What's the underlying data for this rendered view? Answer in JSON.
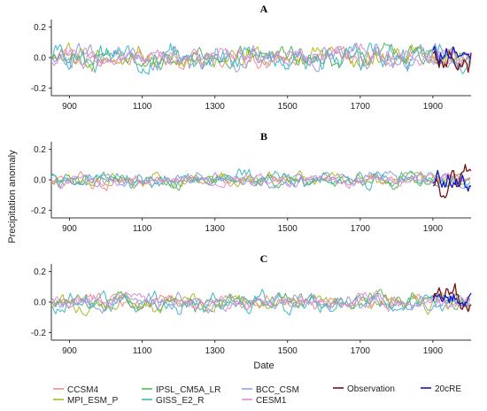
{
  "figure": {
    "ylabel": "Precipitation anomaly",
    "xlabel": "Date"
  },
  "legend": [
    {
      "name": "CCSM4",
      "color": "#f28e8e"
    },
    {
      "name": "MPI_ESM_P",
      "color": "#b5b52a"
    },
    {
      "name": "IPSL_CM5A_LR",
      "color": "#5ab55a"
    },
    {
      "name": "GISS_E2_R",
      "color": "#3fb8c4"
    },
    {
      "name": "BCC_CSM",
      "color": "#8da0e0"
    },
    {
      "name": "CESM1",
      "color": "#dd8ddd"
    },
    {
      "name": "Observation",
      "color": "#7a1010"
    },
    {
      "name": "20cRE",
      "color": "#1414c8"
    }
  ],
  "chart_data": [
    {
      "type": "line",
      "title": "A",
      "xlabel": "",
      "ylabel": "",
      "xlim": [
        850,
        2005
      ],
      "ylim": [
        -0.25,
        0.25
      ],
      "xticks": [
        900,
        1100,
        1300,
        1500,
        1700,
        1900
      ],
      "yticks": [
        -0.2,
        0.0,
        0.2
      ],
      "ytick_labels": [
        "-0.2",
        "0.0",
        "0.2"
      ],
      "grid": false,
      "legend": "bottom",
      "series": [
        {
          "name": "CCSM4",
          "x_start": 850,
          "x_end": 2005,
          "amplitude": 0.05,
          "seed": 11
        },
        {
          "name": "MPI_ESM_P",
          "x_start": 850,
          "x_end": 2005,
          "amplitude": 0.06,
          "seed": 12
        },
        {
          "name": "IPSL_CM5A_LR",
          "x_start": 850,
          "x_end": 2005,
          "amplitude": 0.05,
          "seed": 13
        },
        {
          "name": "GISS_E2_R",
          "x_start": 850,
          "x_end": 2005,
          "amplitude": 0.07,
          "seed": 14
        },
        {
          "name": "BCC_CSM",
          "x_start": 850,
          "x_end": 2005,
          "amplitude": 0.06,
          "seed": 15
        },
        {
          "name": "CESM1",
          "x_start": 850,
          "x_end": 2005,
          "amplitude": 0.05,
          "seed": 16
        },
        {
          "name": "Observation",
          "x_start": 1901,
          "x_end": 2005,
          "amplitude": 0.09,
          "seed": 17
        },
        {
          "name": "20cRE",
          "x_start": 1901,
          "x_end": 2005,
          "amplitude": 0.1,
          "seed": 18
        }
      ]
    },
    {
      "type": "line",
      "title": "B",
      "xlabel": "",
      "ylabel": "",
      "xlim": [
        850,
        2005
      ],
      "ylim": [
        -0.25,
        0.25
      ],
      "xticks": [
        900,
        1100,
        1300,
        1500,
        1700,
        1900
      ],
      "yticks": [
        -0.2,
        0.0,
        0.2
      ],
      "ytick_labels": [
        "-0.2",
        "0.0",
        "0.2"
      ],
      "grid": false,
      "legend": "bottom",
      "series": [
        {
          "name": "CCSM4",
          "x_start": 850,
          "x_end": 2005,
          "amplitude": 0.035,
          "seed": 21
        },
        {
          "name": "MPI_ESM_P",
          "x_start": 850,
          "x_end": 2005,
          "amplitude": 0.04,
          "seed": 22
        },
        {
          "name": "IPSL_CM5A_LR",
          "x_start": 850,
          "x_end": 2005,
          "amplitude": 0.035,
          "seed": 23
        },
        {
          "name": "GISS_E2_R",
          "x_start": 850,
          "x_end": 2005,
          "amplitude": 0.045,
          "seed": 24
        },
        {
          "name": "BCC_CSM",
          "x_start": 850,
          "x_end": 2005,
          "amplitude": 0.035,
          "seed": 25
        },
        {
          "name": "CESM1",
          "x_start": 850,
          "x_end": 2005,
          "amplitude": 0.03,
          "seed": 26
        },
        {
          "name": "Observation",
          "x_start": 1901,
          "x_end": 2005,
          "amplitude": 0.08,
          "seed": 27
        },
        {
          "name": "20cRE",
          "x_start": 1901,
          "x_end": 2005,
          "amplitude": 0.07,
          "seed": 28
        }
      ]
    },
    {
      "type": "line",
      "title": "C",
      "xlabel": "Date",
      "ylabel": "",
      "xlim": [
        850,
        2005
      ],
      "ylim": [
        -0.25,
        0.25
      ],
      "xticks": [
        900,
        1100,
        1300,
        1500,
        1700,
        1900
      ],
      "yticks": [
        -0.2,
        0.0,
        0.2
      ],
      "ytick_labels": [
        "-0.2",
        "0.0",
        "0.2"
      ],
      "grid": false,
      "legend": "bottom",
      "series": [
        {
          "name": "CCSM4",
          "x_start": 850,
          "x_end": 2005,
          "amplitude": 0.04,
          "seed": 31
        },
        {
          "name": "MPI_ESM_P",
          "x_start": 850,
          "x_end": 2005,
          "amplitude": 0.045,
          "seed": 32
        },
        {
          "name": "IPSL_CM5A_LR",
          "x_start": 850,
          "x_end": 2005,
          "amplitude": 0.045,
          "seed": 33
        },
        {
          "name": "GISS_E2_R",
          "x_start": 850,
          "x_end": 2005,
          "amplitude": 0.05,
          "seed": 34
        },
        {
          "name": "BCC_CSM",
          "x_start": 850,
          "x_end": 2005,
          "amplitude": 0.04,
          "seed": 35
        },
        {
          "name": "CESM1",
          "x_start": 850,
          "x_end": 2005,
          "amplitude": 0.04,
          "seed": 36
        },
        {
          "name": "Observation",
          "x_start": 1901,
          "x_end": 2005,
          "amplitude": 0.08,
          "seed": 37
        },
        {
          "name": "20cRE",
          "x_start": 1901,
          "x_end": 2005,
          "amplitude": 0.07,
          "seed": 38
        }
      ]
    }
  ]
}
